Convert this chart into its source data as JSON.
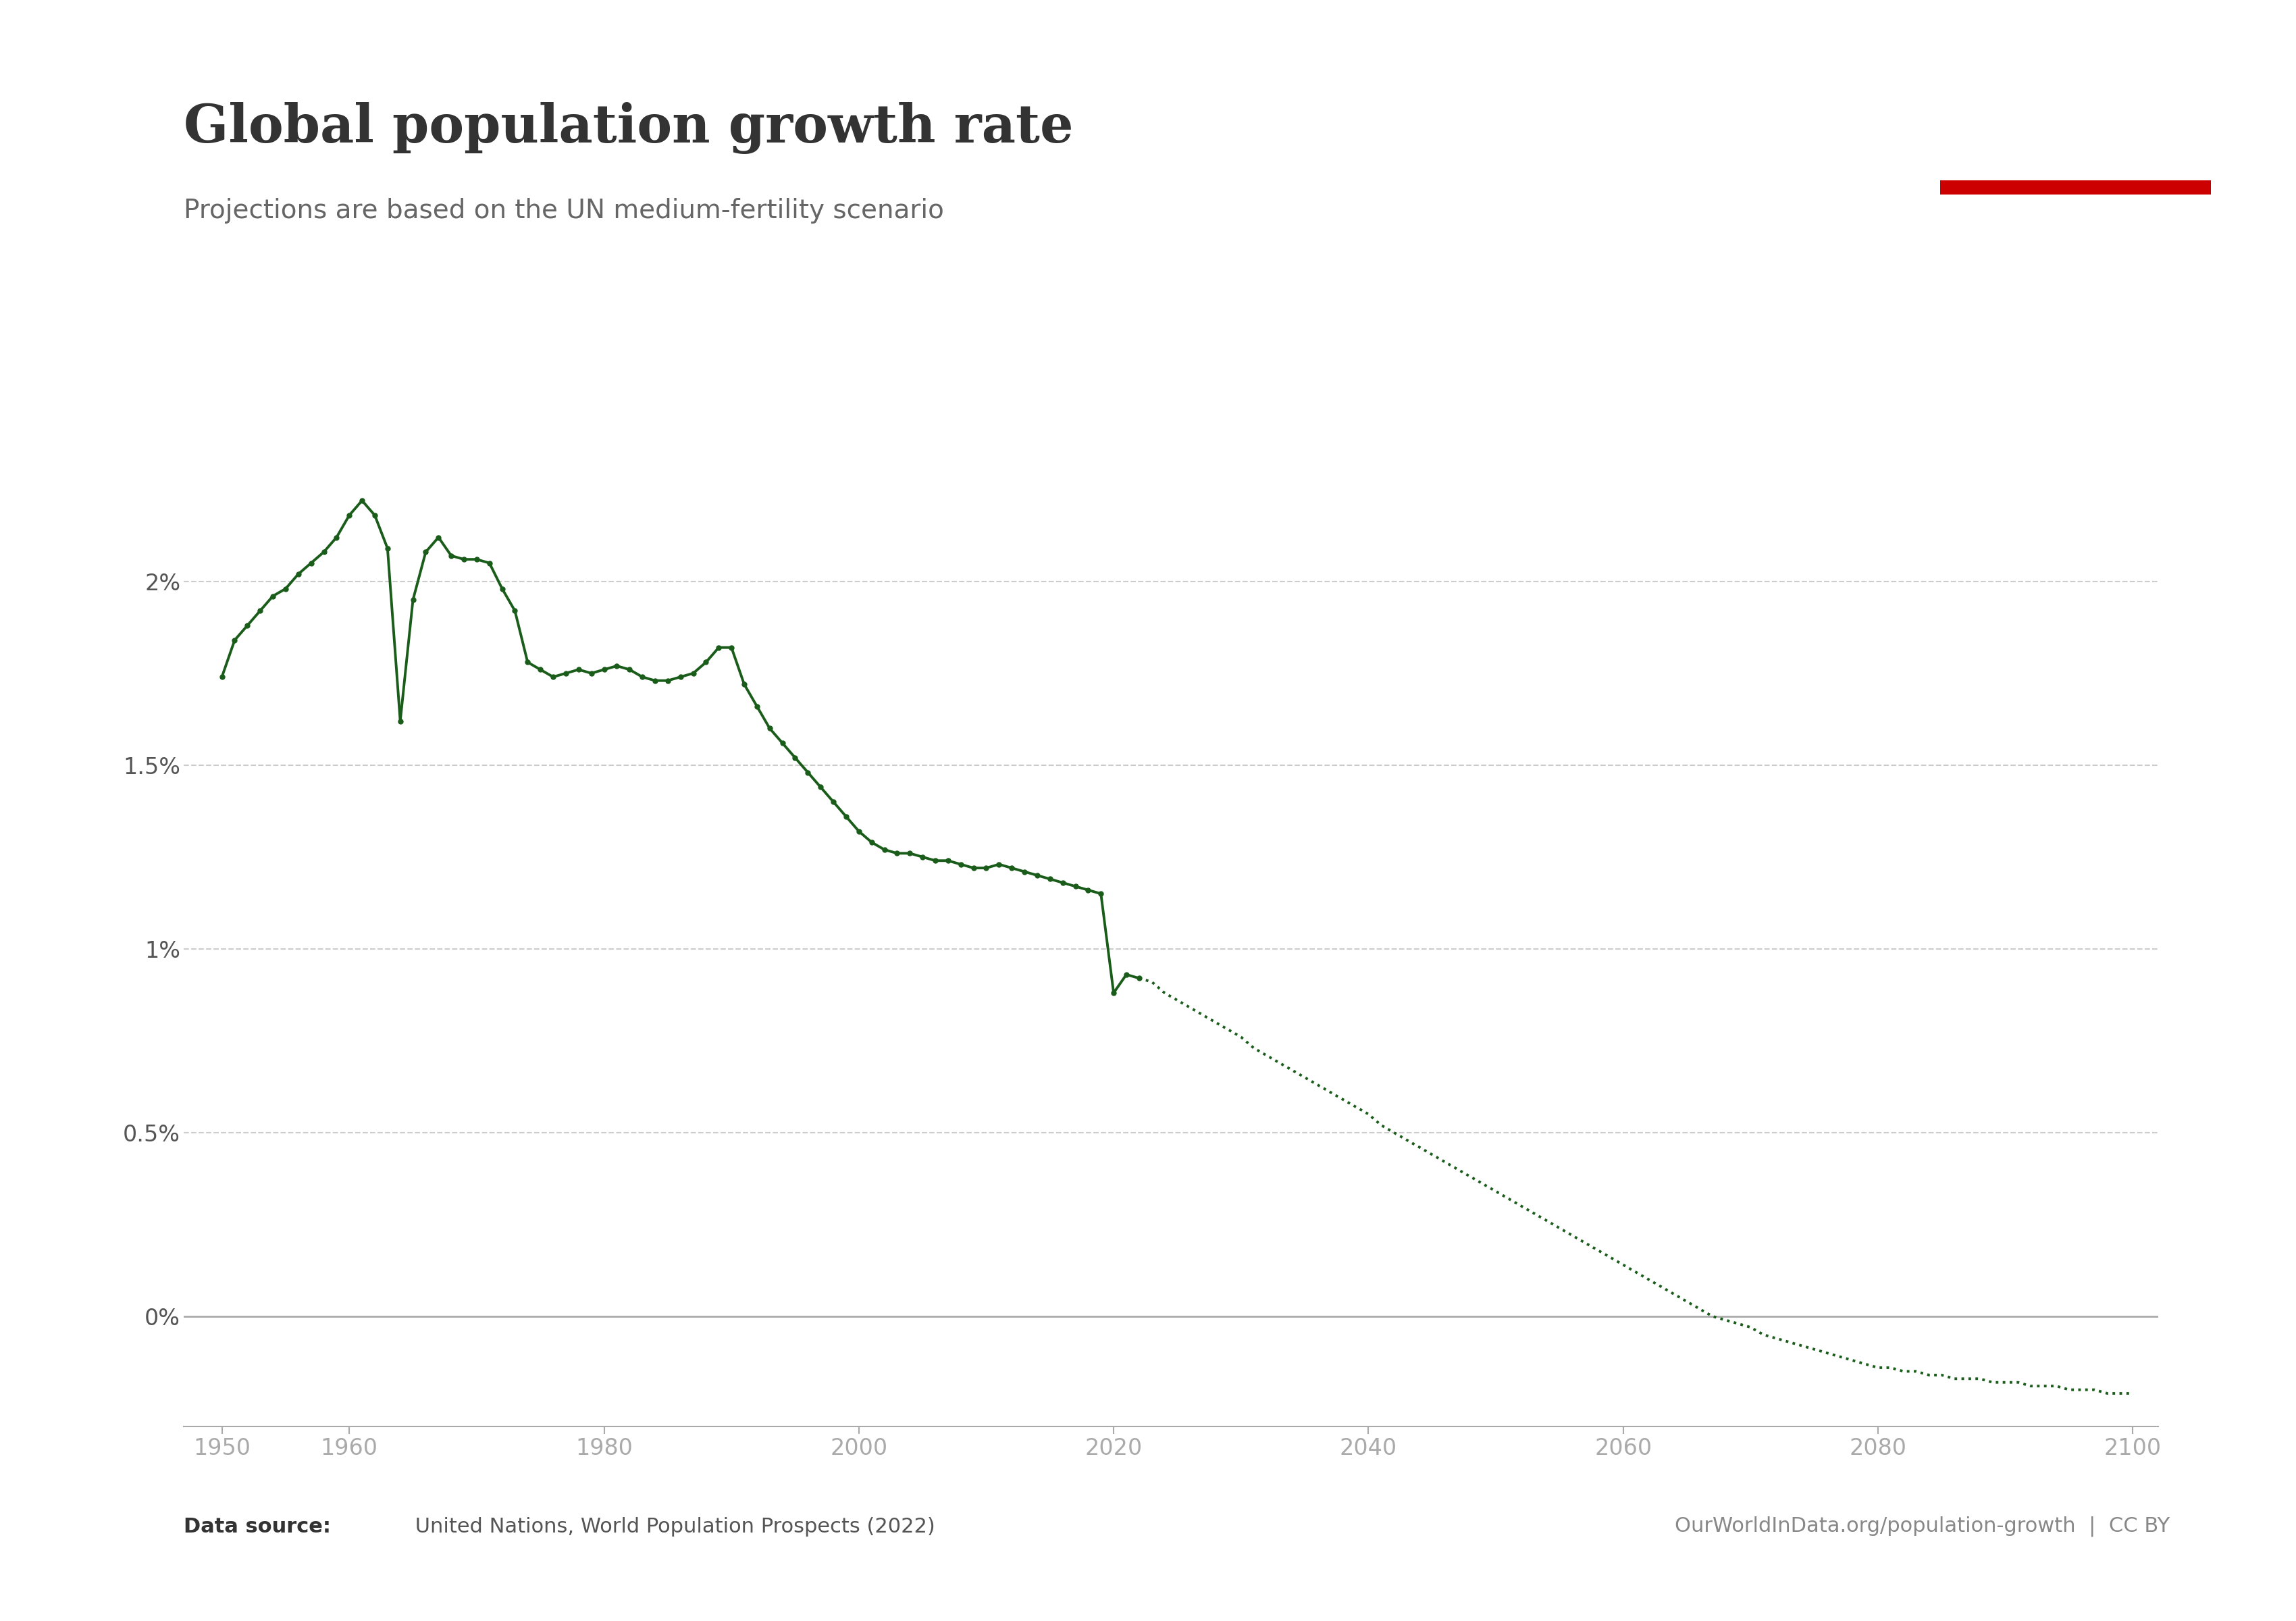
{
  "title": "Global population growth rate",
  "subtitle": "Projections are based on the UN medium-fertility scenario",
  "datasource_bold": "Data source:",
  "datasource_rest": " United Nations, World Population Prospects (2022)",
  "datasource_right": "OurWorldInData.org/population-growth  |  CC BY",
  "line_color": "#1a5c1a",
  "bg_color": "#ffffff",
  "title_color": "#333333",
  "subtitle_color": "#666666",
  "axis_label_color": "#555555",
  "grid_color": "#cccccc",
  "zero_line_color": "#aaaaaa",
  "historical_years": [
    1950,
    1951,
    1952,
    1953,
    1954,
    1955,
    1956,
    1957,
    1958,
    1959,
    1960,
    1961,
    1962,
    1963,
    1964,
    1965,
    1966,
    1967,
    1968,
    1969,
    1970,
    1971,
    1972,
    1973,
    1974,
    1975,
    1976,
    1977,
    1978,
    1979,
    1980,
    1981,
    1982,
    1983,
    1984,
    1985,
    1986,
    1987,
    1988,
    1989,
    1990,
    1991,
    1992,
    1993,
    1994,
    1995,
    1996,
    1997,
    1998,
    1999,
    2000,
    2001,
    2002,
    2003,
    2004,
    2005,
    2006,
    2007,
    2008,
    2009,
    2010,
    2011,
    2012,
    2013,
    2014,
    2015,
    2016,
    2017,
    2018,
    2019,
    2020,
    2021,
    2022
  ],
  "historical_values": [
    1.74,
    1.84,
    1.88,
    1.92,
    1.96,
    1.98,
    2.02,
    2.05,
    2.08,
    2.12,
    2.18,
    2.22,
    2.18,
    2.09,
    1.62,
    1.95,
    2.08,
    2.12,
    2.07,
    2.06,
    2.06,
    2.05,
    1.98,
    1.92,
    1.78,
    1.76,
    1.74,
    1.75,
    1.76,
    1.75,
    1.76,
    1.77,
    1.76,
    1.74,
    1.73,
    1.73,
    1.74,
    1.75,
    1.78,
    1.82,
    1.82,
    1.72,
    1.66,
    1.6,
    1.56,
    1.52,
    1.48,
    1.44,
    1.4,
    1.36,
    1.32,
    1.29,
    1.27,
    1.26,
    1.26,
    1.25,
    1.24,
    1.24,
    1.23,
    1.22,
    1.22,
    1.23,
    1.22,
    1.21,
    1.2,
    1.19,
    1.18,
    1.17,
    1.16,
    1.15,
    0.88,
    0.93,
    0.92
  ],
  "projected_years": [
    2022,
    2023,
    2024,
    2025,
    2026,
    2027,
    2028,
    2029,
    2030,
    2031,
    2032,
    2033,
    2034,
    2035,
    2036,
    2037,
    2038,
    2039,
    2040,
    2041,
    2042,
    2043,
    2044,
    2045,
    2046,
    2047,
    2048,
    2049,
    2050,
    2051,
    2052,
    2053,
    2054,
    2055,
    2056,
    2057,
    2058,
    2059,
    2060,
    2061,
    2062,
    2063,
    2064,
    2065,
    2066,
    2067,
    2068,
    2069,
    2070,
    2071,
    2072,
    2073,
    2074,
    2075,
    2076,
    2077,
    2078,
    2079,
    2080,
    2081,
    2082,
    2083,
    2084,
    2085,
    2086,
    2087,
    2088,
    2089,
    2090,
    2091,
    2092,
    2093,
    2094,
    2095,
    2096,
    2097,
    2098,
    2099,
    2100
  ],
  "projected_values": [
    0.92,
    0.91,
    0.88,
    0.86,
    0.84,
    0.82,
    0.8,
    0.78,
    0.76,
    0.73,
    0.71,
    0.69,
    0.67,
    0.65,
    0.63,
    0.61,
    0.59,
    0.57,
    0.55,
    0.52,
    0.5,
    0.48,
    0.46,
    0.44,
    0.42,
    0.4,
    0.38,
    0.36,
    0.34,
    0.32,
    0.3,
    0.28,
    0.26,
    0.24,
    0.22,
    0.2,
    0.18,
    0.16,
    0.14,
    0.12,
    0.1,
    0.08,
    0.06,
    0.04,
    0.02,
    0.0,
    -0.01,
    -0.02,
    -0.03,
    -0.05,
    -0.06,
    -0.07,
    -0.08,
    -0.09,
    -0.1,
    -0.11,
    -0.12,
    -0.13,
    -0.14,
    -0.14,
    -0.15,
    -0.15,
    -0.16,
    -0.16,
    -0.17,
    -0.17,
    -0.17,
    -0.18,
    -0.18,
    -0.18,
    -0.19,
    -0.19,
    -0.19,
    -0.2,
    -0.2,
    -0.2,
    -0.21,
    -0.21,
    -0.21
  ],
  "ytick_labels": [
    "0%",
    "0.5%",
    "1%",
    "1.5%",
    "2%"
  ],
  "xticks": [
    1950,
    1960,
    1980,
    2000,
    2020,
    2040,
    2060,
    2080,
    2100
  ],
  "ylim": [
    -0.003,
    0.027
  ],
  "xlim": [
    1947,
    2102
  ],
  "logo_bg_color": "#1a3a5c",
  "logo_red_color": "#cc0000"
}
